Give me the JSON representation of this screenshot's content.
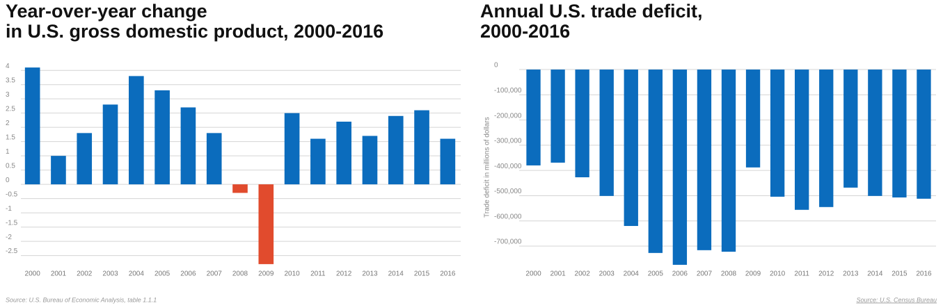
{
  "chart_data": [
    {
      "type": "bar",
      "title": [
        "Year-over-year change",
        "in U.S. gross domestic product, 2000-2016"
      ],
      "categories": [
        "2000",
        "2001",
        "2002",
        "2003",
        "2004",
        "2005",
        "2006",
        "2007",
        "2008",
        "2009",
        "2010",
        "2011",
        "2012",
        "2013",
        "2014",
        "2015",
        "2016"
      ],
      "values": [
        4.1,
        1.0,
        1.8,
        2.8,
        3.8,
        3.3,
        2.7,
        1.8,
        -0.3,
        -2.8,
        2.5,
        1.6,
        2.2,
        1.7,
        2.4,
        2.6,
        1.6
      ],
      "color": "#0b6cbd",
      "negative_color": "#e14b2d",
      "ylim": [
        -2.9,
        4.2
      ],
      "yticks": [
        -2.5,
        -2,
        -1.5,
        -1,
        -0.5,
        0,
        0.5,
        1,
        1.5,
        2,
        2.5,
        3,
        3.5,
        4
      ],
      "grid": true,
      "source": "Source: U.S. Bureau of Economic Analysis, table 1.1.1"
    },
    {
      "type": "bar",
      "title": [
        "Annual U.S. trade deficit,",
        "2000-2016"
      ],
      "y_label": "Trade deficit in millions of dollars",
      "categories": [
        "2000",
        "2001",
        "2002",
        "2003",
        "2004",
        "2005",
        "2006",
        "2007",
        "2008",
        "2009",
        "2010",
        "2011",
        "2012",
        "2013",
        "2014",
        "2015",
        "2016"
      ],
      "values": [
        -380000,
        -369000,
        -427000,
        -501000,
        -620000,
        -727000,
        -774000,
        -716000,
        -722000,
        -388000,
        -504000,
        -556000,
        -545000,
        -468000,
        -501000,
        -507000,
        -512000
      ],
      "color": "#0b6cbd",
      "ylim": [
        -790000,
        15000
      ],
      "yticks": [
        0,
        {
          "value": -100000,
          "label": "-100,000"
        },
        {
          "value": -200000,
          "label": "-200,000"
        },
        {
          "value": -300000,
          "label": "-300,000"
        },
        {
          "value": -400000,
          "label": "-400,000"
        },
        {
          "value": -500000,
          "label": "-500,000"
        },
        {
          "value": -600000,
          "label": "-600,000"
        },
        {
          "value": -700000,
          "label": "-700,000"
        }
      ],
      "grid": true,
      "source": "Source: U.S. Census Bureau"
    }
  ]
}
